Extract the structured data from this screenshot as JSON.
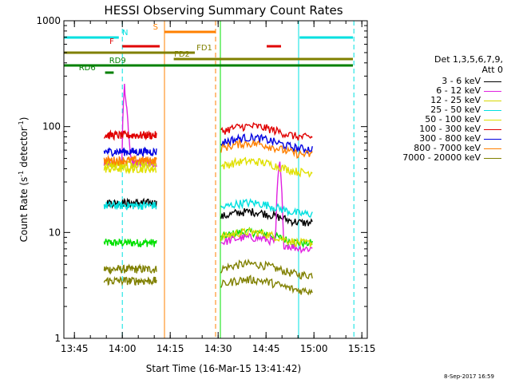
{
  "chart_data": {
    "type": "line",
    "title": "HESSI Observing Summary Count Rates",
    "xlabel": "Start Time (16-Mar-15 13:41:42)",
    "ylabel_main": "Count Rate (s",
    "ylabel_sup1": "-1",
    "ylabel_mid": " detector",
    "ylabel_sup2": "-1",
    "ylabel_end": ")",
    "y_scale": "log",
    "ylim": [
      1,
      1000
    ],
    "xlim_minutes": [
      0,
      95
    ],
    "x_ticks": [
      {
        "label": "13:45",
        "minute": 3.3
      },
      {
        "label": "14:00",
        "minute": 18.3
      },
      {
        "label": "14:15",
        "minute": 33.3
      },
      {
        "label": "14:30",
        "minute": 48.3
      },
      {
        "label": "14:45",
        "minute": 63.3
      },
      {
        "label": "15:00",
        "minute": 78.3
      },
      {
        "label": "15:15",
        "minute": 93.3
      }
    ],
    "y_ticks": [
      {
        "label": "1",
        "value": 1
      },
      {
        "label": "10",
        "value": 10
      },
      {
        "label": "100",
        "value": 100
      },
      {
        "label": "1000",
        "value": 1000
      }
    ],
    "legend_header_line1": "Det 1,3,5,6,7,9,",
    "legend_header_line2": "Att 0",
    "series": [
      {
        "name": "3 - 6 keV",
        "color": "#000000",
        "seg1": 19,
        "seg2": 14,
        "flare": 0
      },
      {
        "name": "6 - 12 keV",
        "color": "#e020e0",
        "seg1": 45,
        "seg2": 8,
        "flare": 1
      },
      {
        "name": "12 - 25 keV",
        "color": "#d8d800",
        "seg1": 45,
        "seg2": 9,
        "flare": 0
      },
      {
        "name": "25 - 50 keV",
        "color": "#00e0e0",
        "seg1": 18,
        "seg2": 17,
        "flare": 0
      },
      {
        "name": "50 - 100 keV",
        "color": "#e0e000",
        "seg1": 40,
        "seg2": 42,
        "flare": 0
      },
      {
        "name": "100 - 300 keV",
        "color": "#e00000",
        "seg1": 83,
        "seg2": 90,
        "flare": 0
      },
      {
        "name": "300 - 800 keV",
        "color": "#0000e0",
        "seg1": 58,
        "seg2": 70,
        "flare": 0
      },
      {
        "name": "800 - 7000 keV",
        "color": "#ff8000",
        "seg1": 48,
        "seg2": 62,
        "flare": 0
      },
      {
        "name": "7000 - 20000 keV",
        "color": "#808000",
        "seg1": 3.5,
        "seg2": 3.2,
        "flare": 0
      }
    ],
    "extra_series": [
      {
        "color": "#00e000",
        "seg1": 8,
        "seg2": 9
      },
      {
        "color": "#808000",
        "seg1": 4.5,
        "seg2": 4.5
      }
    ],
    "data_segments_minutes": [
      [
        12.6,
        29.0
      ],
      [
        49.2,
        77.8
      ]
    ],
    "vertical_markers": [
      {
        "minute": 18.3,
        "color": "#00e0e0",
        "style": "dashed"
      },
      {
        "minute": 31.5,
        "color": "#ff8000",
        "style": "solid"
      },
      {
        "minute": 47.5,
        "color": "#ff8000",
        "style": "dashed"
      },
      {
        "minute": 49.0,
        "color": "#00e000",
        "style": "solid"
      },
      {
        "minute": 73.5,
        "color": "#00e0e0",
        "style": "solid"
      },
      {
        "minute": 90.8,
        "color": "#00e0e0",
        "style": "dashed"
      }
    ],
    "flag_bars": [
      {
        "label": "N",
        "color": "#00e0e0",
        "start": 0,
        "end": 17.2,
        "y": 47,
        "label_minute": 19.2
      },
      {
        "label": "",
        "color": "#00e0e0",
        "start": 73.8,
        "end": 90.5,
        "y": 47,
        "label_minute": null
      },
      {
        "label": "S",
        "color": "#ff8000",
        "start": 31.5,
        "end": 47.5,
        "y": 40,
        "label_minute": 28.7
      },
      {
        "label": "F",
        "color": "#e00000",
        "start": 18.3,
        "end": 30.0,
        "y": 58,
        "label_minute": 15.0
      },
      {
        "label": "",
        "color": "#e00000",
        "start": 63.5,
        "end": 68.0,
        "y": 58,
        "label_minute": null
      },
      {
        "label": "FD1",
        "color": "#808000",
        "start": 0,
        "end": 41.0,
        "y": 66,
        "label_minute": 44.0
      },
      {
        "label": "FD2",
        "color": "#808000",
        "start": 34.4,
        "end": 90.5,
        "y": 74,
        "label_minute": 37.0
      },
      {
        "label": "RD9",
        "color": "#008000",
        "start": 0,
        "end": 90.5,
        "y": 82,
        "label_minute": 16.8
      },
      {
        "label": "RD6",
        "color": "#008000",
        "start": 12.9,
        "end": 15.6,
        "y": 91,
        "label_minute": 7.3
      }
    ]
  },
  "footer": {
    "timestamp": "8-Sep-2017 16:59"
  }
}
